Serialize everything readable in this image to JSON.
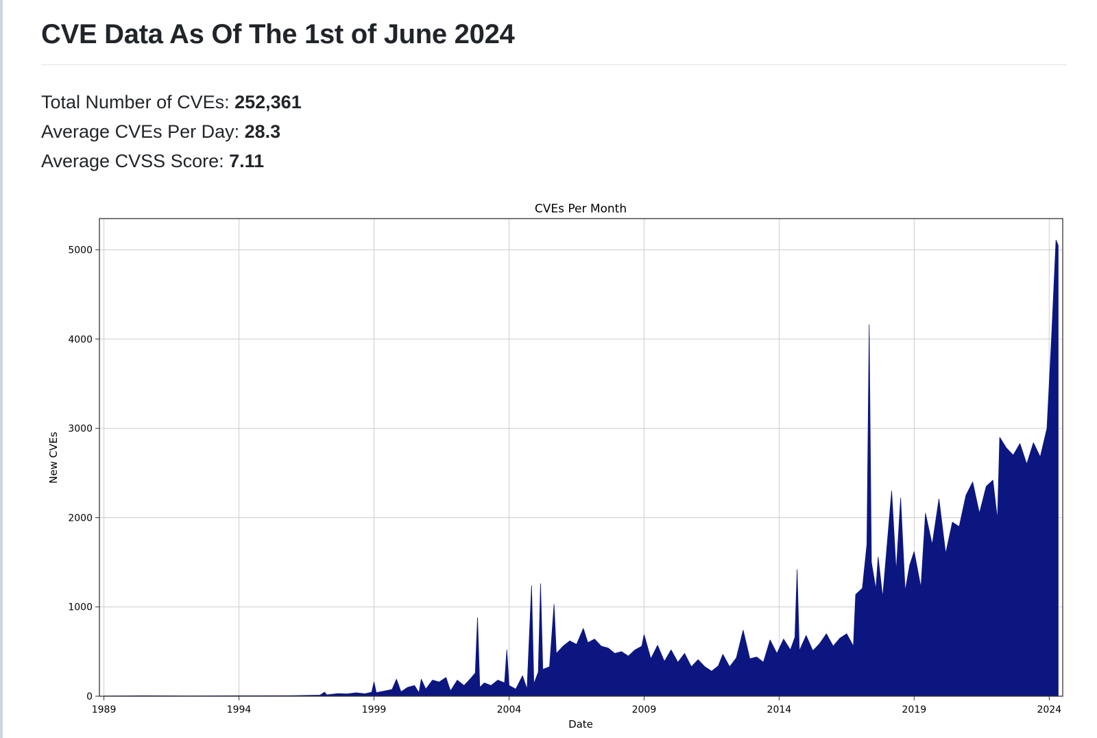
{
  "header": {
    "title": "CVE Data As Of The 1st of June 2024"
  },
  "stats": [
    {
      "label": "Total Number of CVEs: ",
      "value": "252,361"
    },
    {
      "label": "Average CVEs Per Day: ",
      "value": "28.3"
    },
    {
      "label": "Average CVSS Score: ",
      "value": "7.11"
    }
  ],
  "colors": {
    "area_fill": "#0c1680",
    "grid": "#cccccc"
  },
  "chart_data": {
    "type": "area",
    "title": "CVEs Per Month",
    "xlabel": "Date",
    "ylabel": "New CVEs",
    "xlim": [
      "1988-11",
      "2024-07"
    ],
    "ylim": [
      0,
      5350
    ],
    "x_ticks": [
      "1989",
      "1994",
      "1999",
      "2004",
      "2009",
      "2014",
      "2019",
      "2024"
    ],
    "y_ticks": [
      0,
      1000,
      2000,
      3000,
      4000,
      5000
    ],
    "grid": true,
    "series": [
      {
        "points": [
          [
            "1989-01",
            3
          ],
          [
            "1990-06",
            5
          ],
          [
            "1992-01",
            4
          ],
          [
            "1994-01",
            5
          ],
          [
            "1996-01",
            6
          ],
          [
            "1997-01",
            12
          ],
          [
            "1997-03",
            45
          ],
          [
            "1997-04",
            15
          ],
          [
            "1997-09",
            30
          ],
          [
            "1998-01",
            25
          ],
          [
            "1998-05",
            38
          ],
          [
            "1998-09",
            28
          ],
          [
            "1998-12",
            45
          ],
          [
            "1999-01",
            160
          ],
          [
            "1999-02",
            40
          ],
          [
            "1999-06",
            60
          ],
          [
            "1999-09",
            75
          ],
          [
            "1999-11",
            190
          ],
          [
            "2000-01",
            50
          ],
          [
            "2000-04",
            100
          ],
          [
            "2000-07",
            120
          ],
          [
            "2000-09",
            40
          ],
          [
            "2000-10",
            190
          ],
          [
            "2000-12",
            80
          ],
          [
            "2001-03",
            180
          ],
          [
            "2001-06",
            160
          ],
          [
            "2001-09",
            210
          ],
          [
            "2001-11",
            60
          ],
          [
            "2002-02",
            180
          ],
          [
            "2002-05",
            120
          ],
          [
            "2002-08",
            200
          ],
          [
            "2002-10",
            260
          ],
          [
            "2002-11",
            880
          ],
          [
            "2002-12",
            100
          ],
          [
            "2003-02",
            150
          ],
          [
            "2003-05",
            120
          ],
          [
            "2003-08",
            180
          ],
          [
            "2003-11",
            150
          ],
          [
            "2003-12",
            520
          ],
          [
            "2004-01",
            120
          ],
          [
            "2004-04",
            80
          ],
          [
            "2004-07",
            230
          ],
          [
            "2004-09",
            80
          ],
          [
            "2004-11",
            1240
          ],
          [
            "2004-12",
            140
          ],
          [
            "2005-02",
            270
          ],
          [
            "2005-03",
            1260
          ],
          [
            "2005-04",
            300
          ],
          [
            "2005-07",
            330
          ],
          [
            "2005-09",
            1030
          ],
          [
            "2005-10",
            480
          ],
          [
            "2006-01",
            560
          ],
          [
            "2006-04",
            620
          ],
          [
            "2006-07",
            580
          ],
          [
            "2006-10",
            760
          ],
          [
            "2006-12",
            600
          ],
          [
            "2007-03",
            640
          ],
          [
            "2007-06",
            560
          ],
          [
            "2007-09",
            540
          ],
          [
            "2007-12",
            480
          ],
          [
            "2008-03",
            500
          ],
          [
            "2008-06",
            450
          ],
          [
            "2008-09",
            520
          ],
          [
            "2008-12",
            560
          ],
          [
            "2009-01",
            690
          ],
          [
            "2009-04",
            420
          ],
          [
            "2009-07",
            570
          ],
          [
            "2009-10",
            390
          ],
          [
            "2010-01",
            520
          ],
          [
            "2010-04",
            380
          ],
          [
            "2010-07",
            480
          ],
          [
            "2010-10",
            330
          ],
          [
            "2011-01",
            410
          ],
          [
            "2011-04",
            330
          ],
          [
            "2011-07",
            280
          ],
          [
            "2011-10",
            340
          ],
          [
            "2011-12",
            470
          ],
          [
            "2012-03",
            330
          ],
          [
            "2012-06",
            430
          ],
          [
            "2012-09",
            740
          ],
          [
            "2012-12",
            420
          ],
          [
            "2013-03",
            440
          ],
          [
            "2013-06",
            380
          ],
          [
            "2013-09",
            630
          ],
          [
            "2013-12",
            480
          ],
          [
            "2014-03",
            640
          ],
          [
            "2014-06",
            520
          ],
          [
            "2014-08",
            660
          ],
          [
            "2014-09",
            1420
          ],
          [
            "2014-10",
            510
          ],
          [
            "2015-01",
            680
          ],
          [
            "2015-04",
            510
          ],
          [
            "2015-07",
            590
          ],
          [
            "2015-10",
            700
          ],
          [
            "2016-01",
            560
          ],
          [
            "2016-04",
            650
          ],
          [
            "2016-07",
            700
          ],
          [
            "2016-10",
            560
          ],
          [
            "2016-11",
            1140
          ],
          [
            "2017-02",
            1210
          ],
          [
            "2017-04",
            1700
          ],
          [
            "2017-05",
            4160
          ],
          [
            "2017-06",
            1500
          ],
          [
            "2017-08",
            1200
          ],
          [
            "2017-09",
            1560
          ],
          [
            "2017-11",
            1110
          ],
          [
            "2018-01",
            1700
          ],
          [
            "2018-03",
            2300
          ],
          [
            "2018-05",
            1400
          ],
          [
            "2018-07",
            2220
          ],
          [
            "2018-09",
            1180
          ],
          [
            "2018-11",
            1470
          ],
          [
            "2019-01",
            1620
          ],
          [
            "2019-04",
            1220
          ],
          [
            "2019-06",
            2050
          ],
          [
            "2019-09",
            1700
          ],
          [
            "2019-12",
            2210
          ],
          [
            "2020-03",
            1600
          ],
          [
            "2020-06",
            1950
          ],
          [
            "2020-09",
            1900
          ],
          [
            "2020-12",
            2250
          ],
          [
            "2021-03",
            2400
          ],
          [
            "2021-06",
            2050
          ],
          [
            "2021-09",
            2350
          ],
          [
            "2021-12",
            2420
          ],
          [
            "2022-02",
            1980
          ],
          [
            "2022-03",
            2900
          ],
          [
            "2022-06",
            2780
          ],
          [
            "2022-09",
            2700
          ],
          [
            "2022-12",
            2830
          ],
          [
            "2023-03",
            2600
          ],
          [
            "2023-06",
            2840
          ],
          [
            "2023-09",
            2680
          ],
          [
            "2023-12",
            3000
          ],
          [
            "2024-02",
            4000
          ],
          [
            "2024-04",
            5110
          ],
          [
            "2024-05",
            5050
          ]
        ]
      }
    ]
  }
}
